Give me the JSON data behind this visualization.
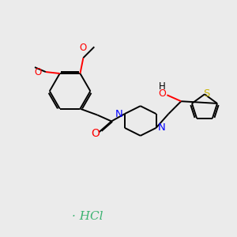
{
  "background_color": "#EBEBEB",
  "bond_color": "#000000",
  "nitrogen_color": "#0000FF",
  "oxygen_color": "#FF0000",
  "sulfur_color": "#C9B400",
  "hcl_color": "#3CB371",
  "figsize": [
    3.0,
    3.0
  ],
  "dpi": 100,
  "lw": 1.4,
  "font_size": 8.5,
  "hcl_text": "· HCl",
  "methoxy_text": "O",
  "oh_label": "OH",
  "s_label": "S",
  "n_label": "N"
}
